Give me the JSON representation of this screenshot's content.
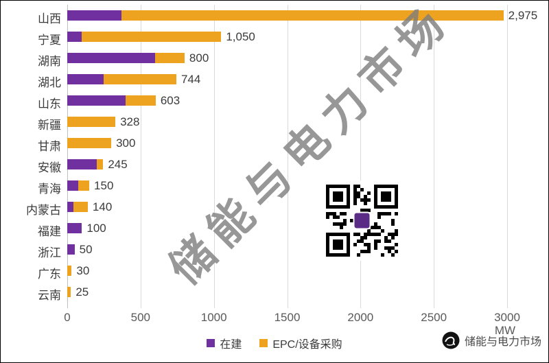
{
  "watermark": {
    "text": "储能与电力市场"
  },
  "brand": {
    "text": "储能与电力市场"
  },
  "chart_data": {
    "type": "bar",
    "orientation": "horizontal",
    "stacked": true,
    "title": "",
    "categories": [
      "山西",
      "宁夏",
      "湖南",
      "湖北",
      "山东",
      "新疆",
      "甘肃",
      "安徽",
      "青海",
      "内蒙古",
      "福建",
      "浙江",
      "广东",
      "云南"
    ],
    "series": [
      {
        "name": "在建",
        "color": "#7030A0",
        "values": [
          370,
          100,
          600,
          250,
          400,
          0,
          0,
          200,
          75,
          40,
          100,
          50,
          0,
          0
        ]
      },
      {
        "name": "EPC/设备采购",
        "color": "#EEA320",
        "values": [
          2605,
          950,
          200,
          494,
          203,
          328,
          300,
          45,
          75,
          100,
          0,
          0,
          30,
          25
        ]
      }
    ],
    "totals": [
      2975,
      1050,
      800,
      744,
      603,
      328,
      300,
      245,
      150,
      140,
      100,
      50,
      30,
      25
    ],
    "total_labels": [
      "2,975",
      "1,050",
      "800",
      "744",
      "603",
      "328",
      "300",
      "245",
      "150",
      "140",
      "100",
      "50",
      "30",
      "25"
    ],
    "x_ticks": [
      0,
      500,
      1000,
      1500,
      2000,
      2500,
      3000
    ],
    "xlim": [
      0,
      3000
    ],
    "axis_unit": "MW",
    "grid": true,
    "legend_position": "bottom"
  }
}
